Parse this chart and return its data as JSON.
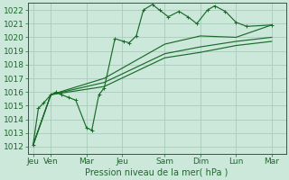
{
  "xlabel": "Pression niveau de la mer( hPa )",
  "bg_color": "#cce8da",
  "grid_color": "#aaccbb",
  "line_color": "#1a6b2a",
  "ylim": [
    1011.5,
    1022.5
  ],
  "yticks": [
    1012,
    1013,
    1014,
    1015,
    1016,
    1017,
    1018,
    1019,
    1020,
    1021,
    1022
  ],
  "x_day_labels": [
    "Jeu",
    "Ven",
    "Mar",
    "Jeu",
    "Sam",
    "Dim",
    "Lun",
    "Mar"
  ],
  "x_day_positions": [
    0.0,
    0.5,
    1.5,
    2.5,
    3.7,
    4.7,
    5.7,
    6.7
  ],
  "xlim": [
    -0.15,
    7.1
  ],
  "series_main": [
    [
      0.0,
      1012.1
    ],
    [
      0.15,
      1014.8
    ],
    [
      0.3,
      1015.2
    ],
    [
      0.5,
      1015.8
    ],
    [
      0.65,
      1016.0
    ],
    [
      0.8,
      1015.8
    ],
    [
      1.0,
      1015.6
    ],
    [
      1.2,
      1015.4
    ],
    [
      1.5,
      1013.4
    ],
    [
      1.65,
      1013.2
    ],
    [
      1.85,
      1015.8
    ],
    [
      2.0,
      1016.3
    ],
    [
      2.3,
      1019.9
    ],
    [
      2.55,
      1019.7
    ],
    [
      2.7,
      1019.6
    ],
    [
      2.9,
      1020.1
    ],
    [
      3.1,
      1022.0
    ],
    [
      3.35,
      1022.4
    ],
    [
      3.55,
      1022.0
    ],
    [
      3.8,
      1021.5
    ],
    [
      4.1,
      1021.9
    ],
    [
      4.35,
      1021.5
    ],
    [
      4.6,
      1021.0
    ],
    [
      4.9,
      1022.0
    ],
    [
      5.1,
      1022.3
    ],
    [
      5.4,
      1021.9
    ],
    [
      5.7,
      1021.1
    ],
    [
      6.0,
      1020.8
    ],
    [
      6.7,
      1020.9
    ]
  ],
  "series_smooth": [
    [
      [
        0.0,
        1012.1
      ],
      [
        0.5,
        1015.8
      ],
      [
        2.0,
        1017.0
      ],
      [
        3.7,
        1019.5
      ],
      [
        4.7,
        1020.1
      ],
      [
        5.7,
        1020.0
      ],
      [
        6.7,
        1020.9
      ]
    ],
    [
      [
        0.0,
        1012.1
      ],
      [
        0.5,
        1015.8
      ],
      [
        2.0,
        1016.7
      ],
      [
        3.7,
        1018.8
      ],
      [
        4.7,
        1019.3
      ],
      [
        5.7,
        1019.7
      ],
      [
        6.7,
        1020.0
      ]
    ],
    [
      [
        0.0,
        1012.1
      ],
      [
        0.5,
        1015.8
      ],
      [
        2.0,
        1016.4
      ],
      [
        3.7,
        1018.5
      ],
      [
        4.7,
        1018.9
      ],
      [
        5.7,
        1019.4
      ],
      [
        6.7,
        1019.7
      ]
    ]
  ],
  "font_size": 6.5
}
